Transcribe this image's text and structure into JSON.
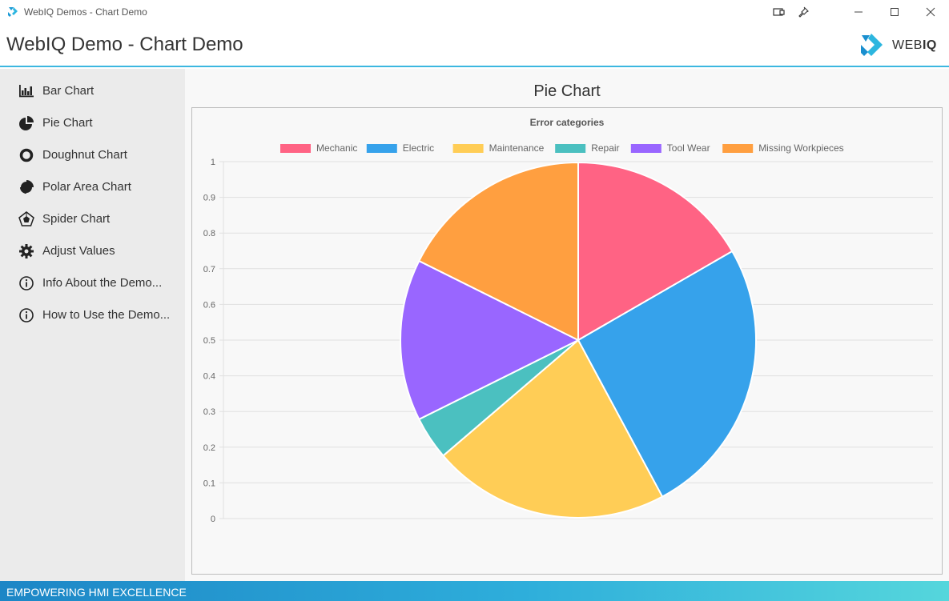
{
  "window": {
    "title": "WebIQ Demos - Chart Demo"
  },
  "header": {
    "title": "WebIQ Demo - Chart Demo",
    "logo_text_light": "WEB",
    "logo_text_bold": "IQ"
  },
  "sidebar": {
    "items": [
      {
        "label": "Bar Chart",
        "icon": "bar-chart-icon"
      },
      {
        "label": "Pie Chart",
        "icon": "pie-chart-icon"
      },
      {
        "label": "Doughnut Chart",
        "icon": "doughnut-chart-icon"
      },
      {
        "label": "Polar Area Chart",
        "icon": "polar-area-chart-icon"
      },
      {
        "label": "Spider Chart",
        "icon": "spider-chart-icon"
      },
      {
        "label": "Adjust Values",
        "icon": "gear-icon"
      },
      {
        "label": "Info About the Demo...",
        "icon": "info-icon"
      },
      {
        "label": "How to Use the Demo...",
        "icon": "info-icon"
      }
    ]
  },
  "main": {
    "page_title": "Pie Chart"
  },
  "footer": {
    "text": "EMPOWERING HMI EXCELLENCE"
  },
  "colors": {
    "accent": "#3cb7e0",
    "sidebar_bg": "#ebebeb"
  },
  "chart_data": {
    "type": "pie",
    "title": "Error categories",
    "categories": [
      "Mechanic",
      "Electric",
      "Maintenance",
      "Repair",
      "Tool Wear",
      "Missing Workpieces"
    ],
    "values": [
      17,
      26,
      22,
      4,
      15,
      18
    ],
    "colors": [
      "#ff6384",
      "#36a2eb",
      "#ffcd56",
      "#4bc0c0",
      "#9966ff",
      "#ff9f40"
    ],
    "y_ticks": [
      "1",
      "0.9",
      "0.8",
      "0.7",
      "0.6",
      "0.5",
      "0.4",
      "0.3",
      "0.2",
      "0.1",
      "0"
    ],
    "legend_position": "top",
    "grid": true
  }
}
